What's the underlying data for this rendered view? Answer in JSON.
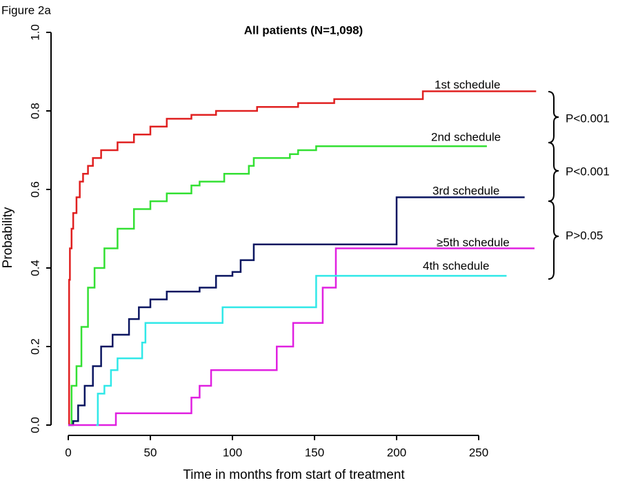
{
  "chart_data": {
    "type": "step",
    "figure_label": "Figure 2a",
    "title": "All patients (N=1,098)",
    "x_label": "Time in months from start of treatment",
    "y_label": "Probability",
    "xlim": [
      0,
      250
    ],
    "xticks": [
      0,
      50,
      100,
      150,
      200,
      250
    ],
    "ylim": [
      0,
      1
    ],
    "yticks": [
      {
        "value": 0,
        "label": "0.0"
      },
      {
        "value": 0.2,
        "label": "0.2"
      },
      {
        "value": 0.4,
        "label": "0.4"
      },
      {
        "value": 0.6,
        "label": "0.6"
      },
      {
        "value": 0.8,
        "label": "0.8"
      },
      {
        "value": 1,
        "label": "1.0"
      }
    ],
    "series": [
      {
        "name": "1st schedule",
        "color": "#e02020",
        "x": [
          0,
          0.5,
          1,
          2,
          3,
          5,
          7,
          9,
          12,
          15,
          20,
          30,
          40,
          50,
          60,
          75,
          90,
          115,
          140,
          162,
          216,
          285
        ],
        "values": [
          0,
          0.37,
          0.45,
          0.5,
          0.54,
          0.58,
          0.62,
          0.64,
          0.66,
          0.68,
          0.7,
          0.72,
          0.74,
          0.76,
          0.78,
          0.79,
          0.8,
          0.81,
          0.82,
          0.83,
          0.85,
          0.85
        ]
      },
      {
        "name": "2nd schedule",
        "color": "#33e033",
        "x": [
          0,
          2,
          5,
          8,
          12,
          16,
          22,
          30,
          40,
          50,
          60,
          75,
          80,
          95,
          110,
          113,
          135,
          140,
          151,
          255
        ],
        "values": [
          0,
          0.1,
          0.15,
          0.25,
          0.35,
          0.4,
          0.45,
          0.5,
          0.55,
          0.57,
          0.59,
          0.61,
          0.62,
          0.64,
          0.66,
          0.68,
          0.69,
          0.7,
          0.71,
          0.71
        ]
      },
      {
        "name": "3rd schedule",
        "color": "#0a1560",
        "x": [
          0,
          3,
          6,
          10,
          15,
          20,
          27,
          37,
          43,
          50,
          60,
          80,
          90,
          100,
          105,
          113,
          200,
          278
        ],
        "values": [
          0,
          0.01,
          0.05,
          0.1,
          0.15,
          0.2,
          0.23,
          0.27,
          0.3,
          0.32,
          0.34,
          0.35,
          0.38,
          0.39,
          0.42,
          0.46,
          0.58,
          0.58
        ]
      },
      {
        "name": "≥5th schedule",
        "color": "#e020e0",
        "x": [
          0,
          29,
          75,
          80,
          87,
          127,
          137,
          155,
          163,
          284
        ],
        "values": [
          0,
          0.03,
          0.07,
          0.1,
          0.14,
          0.2,
          0.26,
          0.35,
          0.45,
          0.45
        ]
      },
      {
        "name": "4th schedule",
        "color": "#30e8e8",
        "x": [
          17,
          18,
          22,
          26,
          30,
          45,
          47,
          94,
          151,
          267
        ],
        "values": [
          0,
          0.08,
          0.1,
          0.14,
          0.17,
          0.21,
          0.26,
          0.3,
          0.38,
          0.38
        ]
      }
    ],
    "annotations": [
      "P<0.001",
      "P<0.001",
      "P>0.05"
    ]
  }
}
